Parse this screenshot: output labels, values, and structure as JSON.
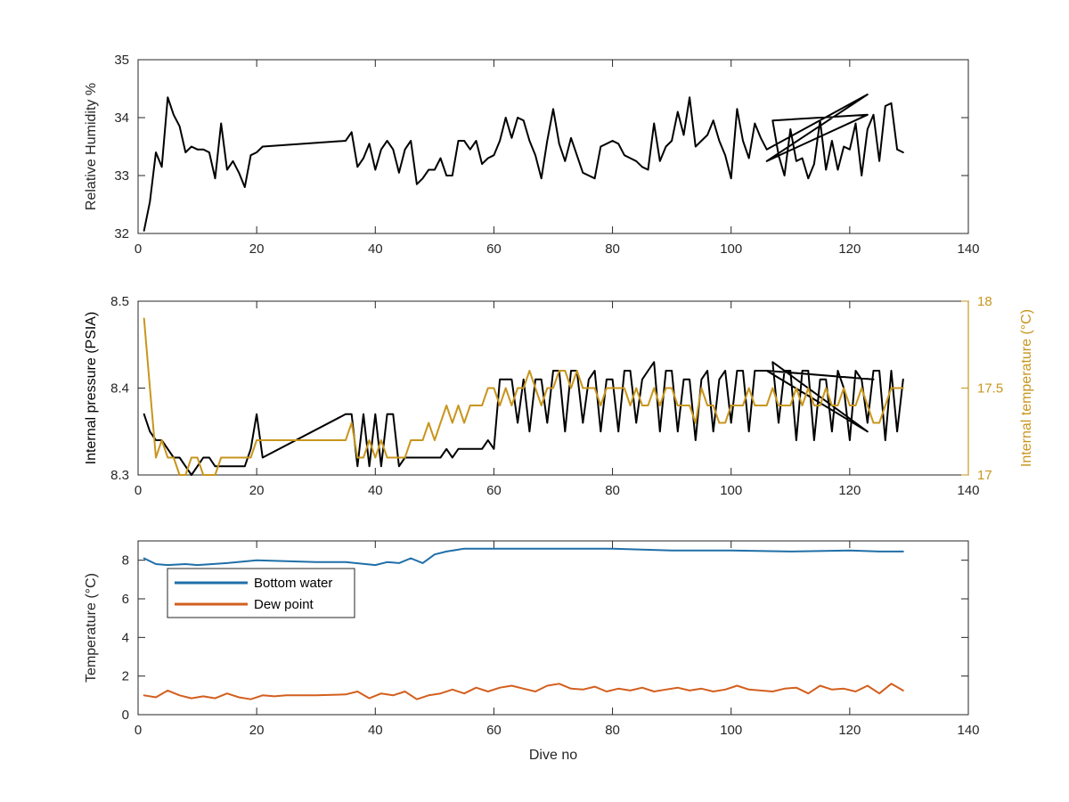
{
  "chart_data": [
    {
      "type": "line",
      "title": "",
      "xlabel": "",
      "ylabel": "Relative Humidity %",
      "xlim": [
        0,
        140
      ],
      "ylim": [
        32,
        35
      ],
      "xticks": [
        0,
        20,
        40,
        60,
        80,
        100,
        120,
        140
      ],
      "yticks": [
        32,
        33,
        34,
        35
      ],
      "grid": false,
      "series": [
        {
          "color": "#000000",
          "axis": "left",
          "x": [
            1,
            2,
            3,
            4,
            5,
            6,
            7,
            8,
            9,
            10,
            11,
            12,
            13,
            14,
            15,
            16,
            17,
            18,
            19,
            20,
            21,
            35,
            36,
            37,
            38,
            39,
            40,
            41,
            42,
            43,
            44,
            45,
            46,
            47,
            48,
            49,
            50,
            51,
            52,
            53,
            54,
            55,
            56,
            57,
            58,
            59,
            60,
            61,
            62,
            63,
            64,
            65,
            66,
            67,
            68,
            69,
            70,
            71,
            72,
            73,
            74,
            75,
            76,
            77,
            78,
            79,
            80,
            81,
            82,
            83,
            84,
            85,
            86,
            87,
            88,
            89,
            90,
            91,
            92,
            93,
            94,
            95,
            96,
            97,
            98,
            99,
            100,
            101,
            102,
            103,
            104,
            105,
            106,
            123,
            106,
            123,
            107,
            108,
            109,
            110,
            111,
            112,
            113,
            114,
            115,
            116,
            117,
            118,
            119,
            120,
            121,
            122,
            123,
            124,
            125,
            126,
            127,
            128,
            129
          ],
          "y": [
            32.05,
            32.55,
            33.4,
            33.15,
            34.35,
            34.05,
            33.85,
            33.4,
            33.5,
            33.45,
            33.45,
            33.4,
            32.95,
            33.9,
            33.1,
            33.25,
            33.05,
            32.8,
            33.35,
            33.4,
            33.5,
            33.6,
            33.75,
            33.15,
            33.3,
            33.55,
            33.1,
            33.45,
            33.6,
            33.45,
            33.05,
            33.45,
            33.6,
            32.85,
            32.95,
            33.1,
            33.1,
            33.3,
            33.0,
            33.0,
            33.6,
            33.6,
            33.45,
            33.6,
            33.2,
            33.3,
            33.35,
            33.6,
            34.0,
            33.65,
            34.0,
            33.95,
            33.6,
            33.35,
            32.95,
            33.6,
            34.15,
            33.55,
            33.25,
            33.65,
            33.35,
            33.05,
            33.0,
            32.95,
            33.5,
            33.55,
            33.6,
            33.55,
            33.35,
            33.3,
            33.25,
            33.15,
            33.1,
            33.9,
            33.25,
            33.5,
            33.6,
            34.1,
            33.7,
            34.35,
            33.5,
            33.6,
            33.7,
            33.95,
            33.6,
            33.35,
            32.95,
            34.15,
            33.6,
            33.3,
            33.9,
            33.65,
            33.45,
            34.4,
            33.25,
            34.05,
            33.95,
            33.35,
            33.0,
            33.8,
            33.25,
            33.3,
            32.95,
            33.2,
            33.95,
            33.1,
            33.6,
            33.1,
            33.5,
            33.45,
            33.9,
            33.0,
            33.8,
            34.05,
            33.25,
            34.2,
            34.25,
            33.45,
            33.4
          ]
        }
      ]
    },
    {
      "type": "line",
      "title": "",
      "xlabel": "",
      "ylabel": "Internal pressure (PSIA)",
      "y2label": "Internal temperature (°C)",
      "xlim": [
        0,
        140
      ],
      "ylim": [
        8.3,
        8.5
      ],
      "y2lim": [
        17,
        18
      ],
      "xticks": [
        0,
        20,
        40,
        60,
        80,
        100,
        120,
        140
      ],
      "yticks": [
        8.3,
        8.4,
        8.5
      ],
      "y2ticks": [
        17,
        17.5,
        18
      ],
      "grid": false,
      "series": [
        {
          "color": "#000000",
          "axis": "left",
          "x": [
            1,
            2,
            3,
            4,
            5,
            6,
            7,
            8,
            9,
            10,
            11,
            12,
            13,
            14,
            15,
            16,
            17,
            18,
            19,
            20,
            21,
            35,
            36,
            37,
            38,
            39,
            40,
            41,
            42,
            43,
            44,
            45,
            46,
            47,
            48,
            49,
            50,
            51,
            52,
            53,
            54,
            55,
            56,
            57,
            58,
            59,
            60,
            61,
            62,
            63,
            64,
            65,
            66,
            67,
            68,
            69,
            70,
            71,
            72,
            73,
            74,
            75,
            76,
            77,
            78,
            79,
            80,
            81,
            82,
            83,
            84,
            85,
            86,
            87,
            88,
            89,
            90,
            91,
            92,
            93,
            94,
            95,
            96,
            97,
            98,
            99,
            100,
            101,
            102,
            103,
            104,
            105,
            106,
            124,
            106,
            123,
            107,
            108,
            109,
            110,
            111,
            112,
            113,
            114,
            115,
            116,
            117,
            118,
            119,
            120,
            121,
            122,
            123,
            124,
            125,
            126,
            127,
            128,
            129
          ],
          "y": [
            8.37,
            8.35,
            8.34,
            8.34,
            8.33,
            8.32,
            8.32,
            8.31,
            8.3,
            8.31,
            8.32,
            8.32,
            8.31,
            8.31,
            8.31,
            8.31,
            8.31,
            8.31,
            8.33,
            8.37,
            8.32,
            8.37,
            8.37,
            8.31,
            8.37,
            8.31,
            8.37,
            8.31,
            8.37,
            8.37,
            8.31,
            8.32,
            8.32,
            8.32,
            8.32,
            8.32,
            8.32,
            8.32,
            8.33,
            8.32,
            8.33,
            8.33,
            8.33,
            8.33,
            8.33,
            8.34,
            8.33,
            8.41,
            8.41,
            8.41,
            8.36,
            8.41,
            8.35,
            8.41,
            8.41,
            8.36,
            8.42,
            8.42,
            8.35,
            8.42,
            8.42,
            8.36,
            8.41,
            8.42,
            8.35,
            8.41,
            8.41,
            8.35,
            8.42,
            8.42,
            8.36,
            8.41,
            8.42,
            8.43,
            8.35,
            8.42,
            8.42,
            8.35,
            8.41,
            8.41,
            8.34,
            8.41,
            8.42,
            8.35,
            8.41,
            8.42,
            8.36,
            8.42,
            8.42,
            8.35,
            8.42,
            8.42,
            8.42,
            8.41,
            8.42,
            8.35,
            8.43,
            8.36,
            8.42,
            8.42,
            8.34,
            8.42,
            8.42,
            8.34,
            8.41,
            8.41,
            8.35,
            8.42,
            8.4,
            8.34,
            8.42,
            8.41,
            8.36,
            8.42,
            8.42,
            8.34,
            8.42,
            8.35,
            8.41
          ]
        },
        {
          "color": "#c8961e",
          "axis": "right",
          "x": [
            1,
            2,
            3,
            4,
            5,
            6,
            7,
            8,
            9,
            10,
            11,
            12,
            13,
            14,
            15,
            16,
            17,
            18,
            19,
            20,
            21,
            35,
            36,
            37,
            38,
            39,
            40,
            41,
            42,
            43,
            44,
            45,
            46,
            47,
            48,
            49,
            50,
            51,
            52,
            53,
            54,
            55,
            56,
            57,
            58,
            59,
            60,
            61,
            62,
            63,
            64,
            65,
            66,
            67,
            68,
            69,
            70,
            71,
            72,
            73,
            74,
            75,
            76,
            77,
            78,
            79,
            80,
            81,
            82,
            83,
            84,
            85,
            86,
            87,
            88,
            89,
            90,
            91,
            92,
            93,
            94,
            95,
            96,
            97,
            98,
            99,
            100,
            101,
            102,
            103,
            104,
            105,
            106,
            107,
            108,
            109,
            110,
            111,
            112,
            113,
            114,
            115,
            116,
            117,
            118,
            119,
            120,
            121,
            122,
            123,
            124,
            125,
            126,
            127,
            128,
            129
          ],
          "y": [
            17.9,
            17.5,
            17.1,
            17.2,
            17.1,
            17.1,
            17.0,
            17.0,
            17.1,
            17.1,
            17.0,
            17.0,
            17.0,
            17.1,
            17.1,
            17.1,
            17.1,
            17.1,
            17.1,
            17.2,
            17.2,
            17.2,
            17.3,
            17.1,
            17.1,
            17.2,
            17.1,
            17.2,
            17.1,
            17.1,
            17.1,
            17.1,
            17.2,
            17.2,
            17.2,
            17.3,
            17.2,
            17.3,
            17.4,
            17.3,
            17.4,
            17.3,
            17.4,
            17.4,
            17.4,
            17.5,
            17.5,
            17.4,
            17.5,
            17.4,
            17.5,
            17.5,
            17.6,
            17.5,
            17.4,
            17.5,
            17.5,
            17.6,
            17.6,
            17.5,
            17.6,
            17.5,
            17.5,
            17.5,
            17.4,
            17.5,
            17.5,
            17.5,
            17.5,
            17.4,
            17.5,
            17.4,
            17.4,
            17.5,
            17.4,
            17.5,
            17.5,
            17.4,
            17.4,
            17.4,
            17.3,
            17.5,
            17.4,
            17.4,
            17.3,
            17.3,
            17.4,
            17.4,
            17.4,
            17.5,
            17.4,
            17.4,
            17.4,
            17.5,
            17.4,
            17.4,
            17.4,
            17.5,
            17.4,
            17.5,
            17.4,
            17.4,
            17.5,
            17.4,
            17.4,
            17.5,
            17.4,
            17.4,
            17.5,
            17.4,
            17.3,
            17.3,
            17.4,
            17.5,
            17.5,
            17.5
          ]
        }
      ]
    },
    {
      "type": "line",
      "title": "",
      "xlabel": "Dive no",
      "ylabel": "Temperature (°C)",
      "xlim": [
        0,
        140
      ],
      "ylim": [
        0,
        9
      ],
      "xticks": [
        0,
        20,
        40,
        60,
        80,
        100,
        120,
        140
      ],
      "yticks": [
        0,
        2,
        4,
        6,
        8
      ],
      "grid": false,
      "legend": "upper-left",
      "series": [
        {
          "name": "Bottom water",
          "color": "#1f6fa8",
          "axis": "left",
          "x": [
            1,
            3,
            5,
            8,
            10,
            15,
            20,
            25,
            30,
            35,
            40,
            42,
            44,
            46,
            48,
            50,
            52,
            55,
            60,
            70,
            80,
            90,
            100,
            110,
            120,
            125,
            129
          ],
          "y": [
            8.1,
            7.8,
            7.75,
            7.8,
            7.75,
            7.85,
            8.0,
            7.95,
            7.9,
            7.9,
            7.75,
            7.9,
            7.85,
            8.1,
            7.85,
            8.3,
            8.45,
            8.6,
            8.6,
            8.6,
            8.6,
            8.5,
            8.5,
            8.45,
            8.5,
            8.45,
            8.45
          ]
        },
        {
          "name": "Dew point",
          "color": "#d35f1e",
          "axis": "left",
          "x": [
            1,
            3,
            5,
            7,
            9,
            11,
            13,
            15,
            17,
            19,
            21,
            23,
            25,
            30,
            35,
            37,
            39,
            41,
            43,
            45,
            47,
            49,
            51,
            53,
            55,
            57,
            59,
            61,
            63,
            65,
            67,
            69,
            71,
            73,
            75,
            77,
            79,
            81,
            83,
            85,
            87,
            89,
            91,
            93,
            95,
            97,
            99,
            101,
            103,
            105,
            107,
            109,
            111,
            113,
            115,
            117,
            119,
            121,
            123,
            125,
            127,
            129
          ],
          "y": [
            1.0,
            0.9,
            1.25,
            1.0,
            0.85,
            0.95,
            0.85,
            1.1,
            0.9,
            0.8,
            1.0,
            0.95,
            1.0,
            1.0,
            1.05,
            1.2,
            0.85,
            1.1,
            1.0,
            1.2,
            0.8,
            1.0,
            1.1,
            1.3,
            1.1,
            1.4,
            1.2,
            1.4,
            1.5,
            1.35,
            1.2,
            1.5,
            1.6,
            1.35,
            1.3,
            1.45,
            1.2,
            1.35,
            1.25,
            1.4,
            1.2,
            1.3,
            1.4,
            1.25,
            1.35,
            1.2,
            1.3,
            1.5,
            1.3,
            1.25,
            1.2,
            1.35,
            1.4,
            1.1,
            1.5,
            1.3,
            1.35,
            1.2,
            1.5,
            1.1,
            1.6,
            1.25
          ]
        }
      ]
    }
  ]
}
